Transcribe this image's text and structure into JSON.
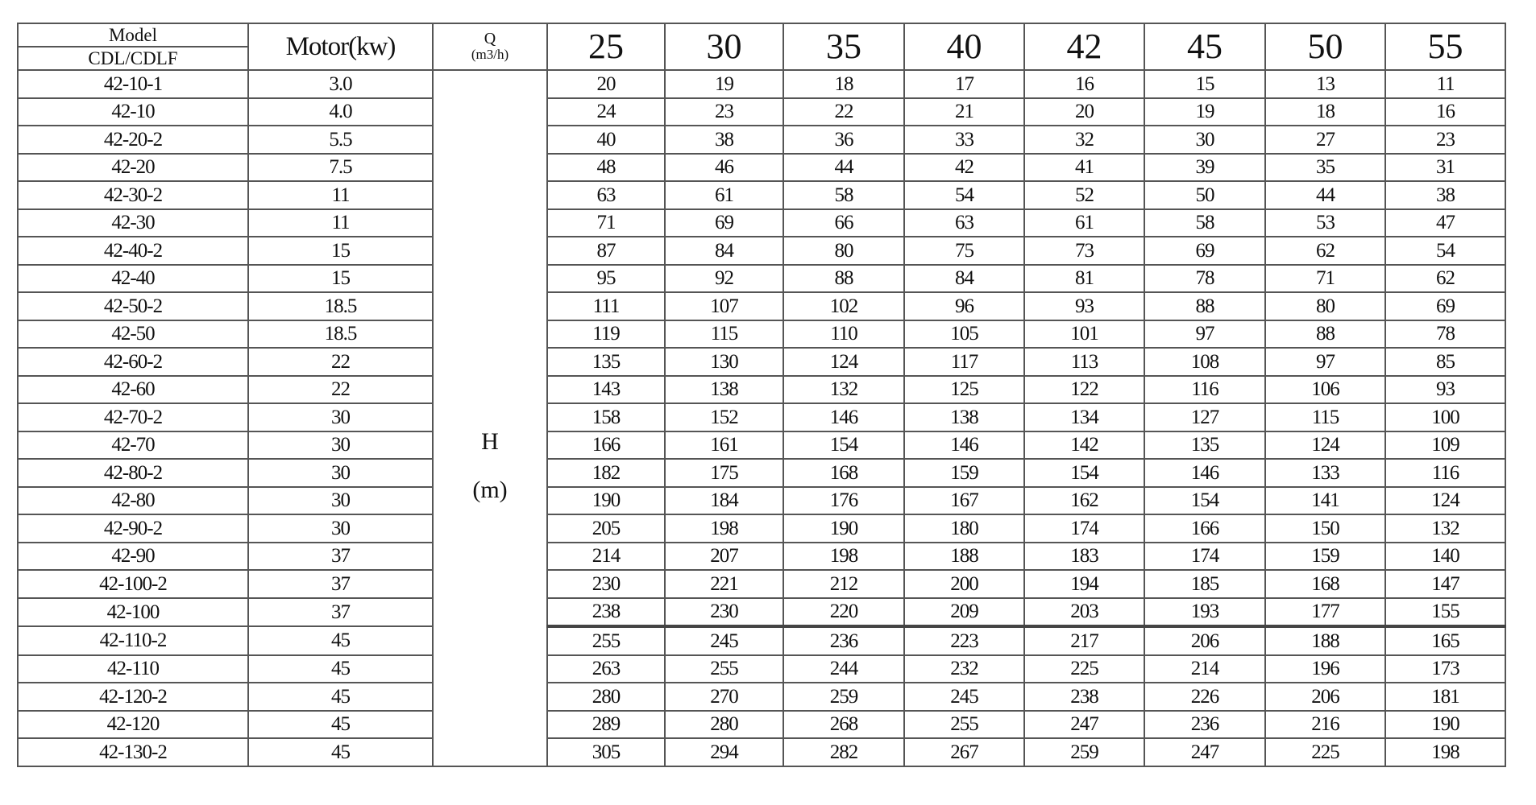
{
  "table": {
    "model_header": "Model",
    "series_header": "CDL/CDLF",
    "motor_header": "Motor(kw)",
    "q_header": "Q",
    "q_unit": "(m3/h)",
    "h_label": "H",
    "h_unit": "(m)",
    "flows": [
      "25",
      "30",
      "35",
      "40",
      "42",
      "45",
      "50",
      "55"
    ],
    "rows": [
      {
        "model": "42-10-1",
        "motor": "3.0",
        "heads": [
          "20",
          "19",
          "18",
          "17",
          "16",
          "15",
          "13",
          "11"
        ]
      },
      {
        "model": "42-10",
        "motor": "4.0",
        "heads": [
          "24",
          "23",
          "22",
          "21",
          "20",
          "19",
          "18",
          "16"
        ]
      },
      {
        "model": "42-20-2",
        "motor": "5.5",
        "heads": [
          "40",
          "38",
          "36",
          "33",
          "32",
          "30",
          "27",
          "23"
        ]
      },
      {
        "model": "42-20",
        "motor": "7.5",
        "heads": [
          "48",
          "46",
          "44",
          "42",
          "41",
          "39",
          "35",
          "31"
        ]
      },
      {
        "model": "42-30-2",
        "motor": "11",
        "heads": [
          "63",
          "61",
          "58",
          "54",
          "52",
          "50",
          "44",
          "38"
        ]
      },
      {
        "model": "42-30",
        "motor": "11",
        "heads": [
          "71",
          "69",
          "66",
          "63",
          "61",
          "58",
          "53",
          "47"
        ]
      },
      {
        "model": "42-40-2",
        "motor": "15",
        "heads": [
          "87",
          "84",
          "80",
          "75",
          "73",
          "69",
          "62",
          "54"
        ]
      },
      {
        "model": "42-40",
        "motor": "15",
        "heads": [
          "95",
          "92",
          "88",
          "84",
          "81",
          "78",
          "71",
          "62"
        ]
      },
      {
        "model": "42-50-2",
        "motor": "18.5",
        "heads": [
          "111",
          "107",
          "102",
          "96",
          "93",
          "88",
          "80",
          "69"
        ]
      },
      {
        "model": "42-50",
        "motor": "18.5",
        "heads": [
          "119",
          "115",
          "110",
          "105",
          "101",
          "97",
          "88",
          "78"
        ]
      },
      {
        "model": "42-60-2",
        "motor": "22",
        "heads": [
          "135",
          "130",
          "124",
          "117",
          "113",
          "108",
          "97",
          "85"
        ]
      },
      {
        "model": "42-60",
        "motor": "22",
        "heads": [
          "143",
          "138",
          "132",
          "125",
          "122",
          "116",
          "106",
          "93"
        ]
      },
      {
        "model": "42-70-2",
        "motor": "30",
        "heads": [
          "158",
          "152",
          "146",
          "138",
          "134",
          "127",
          "115",
          "100"
        ]
      },
      {
        "model": "42-70",
        "motor": "30",
        "heads": [
          "166",
          "161",
          "154",
          "146",
          "142",
          "135",
          "124",
          "109"
        ]
      },
      {
        "model": "42-80-2",
        "motor": "30",
        "heads": [
          "182",
          "175",
          "168",
          "159",
          "154",
          "146",
          "133",
          "116"
        ]
      },
      {
        "model": "42-80",
        "motor": "30",
        "heads": [
          "190",
          "184",
          "176",
          "167",
          "162",
          "154",
          "141",
          "124"
        ]
      },
      {
        "model": "42-90-2",
        "motor": "30",
        "heads": [
          "205",
          "198",
          "190",
          "180",
          "174",
          "166",
          "150",
          "132"
        ]
      },
      {
        "model": "42-90",
        "motor": "37",
        "heads": [
          "214",
          "207",
          "198",
          "188",
          "183",
          "174",
          "159",
          "140"
        ]
      },
      {
        "model": "42-100-2",
        "motor": "37",
        "heads": [
          "230",
          "221",
          "212",
          "200",
          "194",
          "185",
          "168",
          "147"
        ]
      },
      {
        "model": "42-100",
        "motor": "37",
        "heads": [
          "238",
          "230",
          "220",
          "209",
          "203",
          "193",
          "177",
          "155"
        ]
      },
      {
        "model": "42-110-2",
        "motor": "45",
        "heads": [
          "255",
          "245",
          "236",
          "223",
          "217",
          "206",
          "188",
          "165"
        ]
      },
      {
        "model": "42-110",
        "motor": "45",
        "heads": [
          "263",
          "255",
          "244",
          "232",
          "225",
          "214",
          "196",
          "173"
        ]
      },
      {
        "model": "42-120-2",
        "motor": "45",
        "heads": [
          "280",
          "270",
          "259",
          "245",
          "238",
          "226",
          "206",
          "181"
        ]
      },
      {
        "model": "42-120",
        "motor": "45",
        "heads": [
          "289",
          "280",
          "268",
          "255",
          "247",
          "236",
          "216",
          "190"
        ]
      },
      {
        "model": "42-130-2",
        "motor": "45",
        "heads": [
          "305",
          "294",
          "282",
          "267",
          "259",
          "247",
          "225",
          "198"
        ]
      }
    ]
  }
}
